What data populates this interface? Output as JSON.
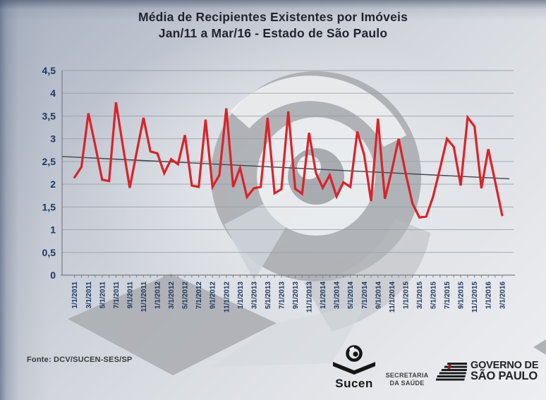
{
  "title": {
    "line1": "Média de Recipientes Existentes por Imóveis",
    "line2": "Jan/11 a Mar/16 - Estado de São Paulo"
  },
  "source": "Fonte: DCV/SUCEN-SES/SP",
  "logos": {
    "sucen": "Sucen",
    "secretaria": [
      "SECRETARIA",
      "DA SAÚDE"
    ],
    "governo": [
      "GOVERNO DE",
      "SÃO PAULO"
    ]
  },
  "colors": {
    "series_red": "#d8232a",
    "trend_gray": "#41464e",
    "axis_label_navy": "#1f3864",
    "grid_gray": "#98a0a9"
  },
  "chart_data": {
    "type": "line",
    "title": "Média de Recipientes Existentes por Imóveis — Jan/11 a Mar/16 - Estado de São Paulo",
    "xlabel": "",
    "ylabel": "",
    "ylim": [
      0,
      4.5
    ],
    "ytick_step": 0.5,
    "ytick_labels": [
      "0",
      "0,5",
      "1",
      "1,5",
      "2",
      "2,5",
      "3",
      "3,5",
      "4",
      "4,5"
    ],
    "xtick_labels": [
      "1/1/2011",
      "3/1/2011",
      "5/1/2011",
      "7/1/2011",
      "9/1/2011",
      "11/1/2011",
      "1/1/2012",
      "3/1/2012",
      "5/1/2012",
      "7/1/2012",
      "9/1/2012",
      "11/1/2012",
      "1/1/2013",
      "3/1/2013",
      "5/1/2013",
      "7/1/2013",
      "9/1/2013",
      "11/1/2013",
      "1/1/2014",
      "3/1/2014",
      "5/1/2014",
      "7/1/2014",
      "9/1/2014",
      "11/1/2014",
      "1/1/2015",
      "3/1/2015",
      "5/1/2015",
      "7/1/2015",
      "9/1/2015",
      "11/1/2015",
      "1/1/2016",
      "3/1/2016"
    ],
    "grid": true,
    "legend": false,
    "series": [
      {
        "name": "media-recipientes-mensal",
        "color": "#d8232a",
        "points": [
          {
            "date": "1/1/2011",
            "value": 2.15
          },
          {
            "date": "2/1/2011",
            "value": 2.38
          },
          {
            "date": "3/1/2011",
            "value": 3.56
          },
          {
            "date": "4/1/2011",
            "value": 2.85
          },
          {
            "date": "5/1/2011",
            "value": 2.1
          },
          {
            "date": "6/1/2011",
            "value": 2.07
          },
          {
            "date": "7/1/2011",
            "value": 3.8
          },
          {
            "date": "8/1/2011",
            "value": 2.85
          },
          {
            "date": "9/1/2011",
            "value": 1.92
          },
          {
            "date": "10/1/2011",
            "value": 2.7
          },
          {
            "date": "11/1/2011",
            "value": 3.46
          },
          {
            "date": "12/1/2011",
            "value": 2.72
          },
          {
            "date": "1/1/2012",
            "value": 2.68
          },
          {
            "date": "2/1/2012",
            "value": 2.24
          },
          {
            "date": "3/1/2012",
            "value": 2.55
          },
          {
            "date": "4/1/2012",
            "value": 2.44
          },
          {
            "date": "5/1/2012",
            "value": 3.08
          },
          {
            "date": "6/1/2012",
            "value": 1.97
          },
          {
            "date": "7/1/2012",
            "value": 1.94
          },
          {
            "date": "8/1/2012",
            "value": 3.42
          },
          {
            "date": "9/1/2012",
            "value": 1.94
          },
          {
            "date": "10/1/2012",
            "value": 2.2
          },
          {
            "date": "11/1/2012",
            "value": 3.67
          },
          {
            "date": "12/1/2012",
            "value": 1.94
          },
          {
            "date": "1/1/2013",
            "value": 2.36
          },
          {
            "date": "2/1/2013",
            "value": 1.72
          },
          {
            "date": "3/1/2013",
            "value": 1.91
          },
          {
            "date": "4/1/2013",
            "value": 1.94
          },
          {
            "date": "5/1/2013",
            "value": 3.46
          },
          {
            "date": "6/1/2013",
            "value": 1.8
          },
          {
            "date": "7/1/2013",
            "value": 1.89
          },
          {
            "date": "8/1/2013",
            "value": 3.6
          },
          {
            "date": "9/1/2013",
            "value": 1.9
          },
          {
            "date": "10/1/2013",
            "value": 1.79
          },
          {
            "date": "11/1/2013",
            "value": 3.13
          },
          {
            "date": "12/1/2013",
            "value": 2.25
          },
          {
            "date": "1/1/2014",
            "value": 1.92
          },
          {
            "date": "2/1/2014",
            "value": 2.2
          },
          {
            "date": "3/1/2014",
            "value": 1.73
          },
          {
            "date": "4/1/2014",
            "value": 2.04
          },
          {
            "date": "5/1/2014",
            "value": 1.94
          },
          {
            "date": "6/1/2014",
            "value": 3.16
          },
          {
            "date": "7/1/2014",
            "value": 2.64
          },
          {
            "date": "8/1/2014",
            "value": 1.63
          },
          {
            "date": "9/1/2014",
            "value": 3.44
          },
          {
            "date": "10/1/2014",
            "value": 1.68
          },
          {
            "date": "11/1/2014",
            "value": 2.3
          },
          {
            "date": "12/1/2014",
            "value": 3.0
          },
          {
            "date": "1/1/2015",
            "value": 2.25
          },
          {
            "date": "2/1/2015",
            "value": 1.58
          },
          {
            "date": "3/1/2015",
            "value": 1.27
          },
          {
            "date": "4/1/2015",
            "value": 1.29
          },
          {
            "date": "5/1/2015",
            "value": 1.73
          },
          {
            "date": "6/1/2015",
            "value": 2.35
          },
          {
            "date": "7/1/2015",
            "value": 3.0
          },
          {
            "date": "8/1/2015",
            "value": 2.82
          },
          {
            "date": "9/1/2015",
            "value": 1.97
          },
          {
            "date": "10/1/2015",
            "value": 3.47
          },
          {
            "date": "11/1/2015",
            "value": 3.27
          },
          {
            "date": "12/1/2015",
            "value": 1.91
          },
          {
            "date": "1/1/2016",
            "value": 2.77
          },
          {
            "date": "2/1/2016",
            "value": 2.05
          },
          {
            "date": "3/1/2016",
            "value": 1.32
          }
        ]
      },
      {
        "name": "tendencia-linear",
        "color": "#41464e",
        "trend": {
          "start_value": 2.61,
          "end_value": 2.12
        }
      }
    ]
  }
}
